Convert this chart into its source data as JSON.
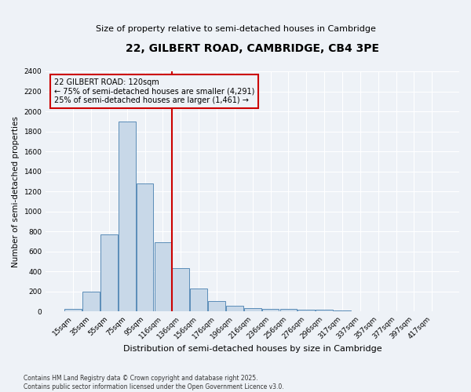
{
  "title": "22, GILBERT ROAD, CAMBRIDGE, CB4 3PE",
  "subtitle": "Size of property relative to semi-detached houses in Cambridge",
  "xlabel": "Distribution of semi-detached houses by size in Cambridge",
  "ylabel": "Number of semi-detached properties",
  "categories": [
    "15sqm",
    "35sqm",
    "55sqm",
    "75sqm",
    "95sqm",
    "116sqm",
    "136sqm",
    "156sqm",
    "176sqm",
    "196sqm",
    "216sqm",
    "236sqm",
    "256sqm",
    "276sqm",
    "296sqm",
    "317sqm",
    "337sqm",
    "357sqm",
    "377sqm",
    "397sqm",
    "417sqm"
  ],
  "values": [
    25,
    200,
    770,
    1900,
    1280,
    690,
    435,
    230,
    105,
    60,
    35,
    30,
    25,
    20,
    20,
    15,
    0,
    0,
    0,
    0,
    0
  ],
  "bar_color": "#c8d8e8",
  "bar_edge_color": "#5b8db8",
  "vline_x_idx": 5,
  "vline_color": "#cc0000",
  "ylim": [
    0,
    2400
  ],
  "yticks": [
    0,
    200,
    400,
    600,
    800,
    1000,
    1200,
    1400,
    1600,
    1800,
    2000,
    2200,
    2400
  ],
  "property_label": "22 GILBERT ROAD: 120sqm",
  "smaller_label": "← 75% of semi-detached houses are smaller (4,291)",
  "larger_label": "25% of semi-detached houses are larger (1,461) →",
  "annotation_box_color": "#cc0000",
  "bg_color": "#eef2f7",
  "footer1": "Contains HM Land Registry data © Crown copyright and database right 2025.",
  "footer2": "Contains public sector information licensed under the Open Government Licence v3.0."
}
